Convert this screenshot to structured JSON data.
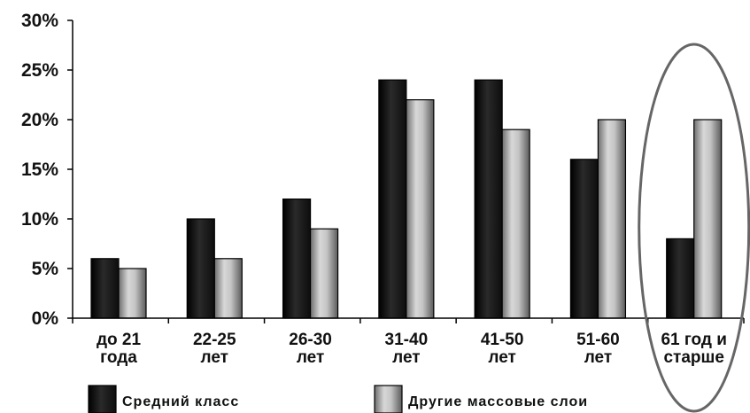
{
  "chart_data": {
    "type": "bar",
    "categories": [
      "до 21 года",
      "22-25 лет",
      "26-30 лет",
      "31-40 лет",
      "41-50 лет",
      "51-60 лет",
      "61 год и старше"
    ],
    "category_lines": [
      [
        "до 21",
        "года"
      ],
      [
        "22-25",
        "лет"
      ],
      [
        "26-30",
        "лет"
      ],
      [
        "31-40",
        "лет"
      ],
      [
        "41-50",
        "лет"
      ],
      [
        "51-60",
        "лет"
      ],
      [
        "61 год и",
        "старше"
      ]
    ],
    "series": [
      {
        "name": "Средний класс",
        "values": [
          6,
          10,
          12,
          24,
          24,
          16,
          8
        ],
        "color": "#1a1a1a"
      },
      {
        "name": "Другие массовые слои",
        "values": [
          5,
          6,
          9,
          22,
          19,
          20,
          20
        ],
        "color": "#a8a8a8"
      }
    ],
    "yticks": [
      "0%",
      "5%",
      "10%",
      "15%",
      "20%",
      "25%",
      "30%"
    ],
    "ylim": [
      0,
      30
    ],
    "title": "",
    "xlabel": "",
    "ylabel": "",
    "grid": false,
    "legend_position": "bottom",
    "highlight": {
      "category": "61 год и старше",
      "shape": "ellipse",
      "color": "#666666"
    }
  }
}
